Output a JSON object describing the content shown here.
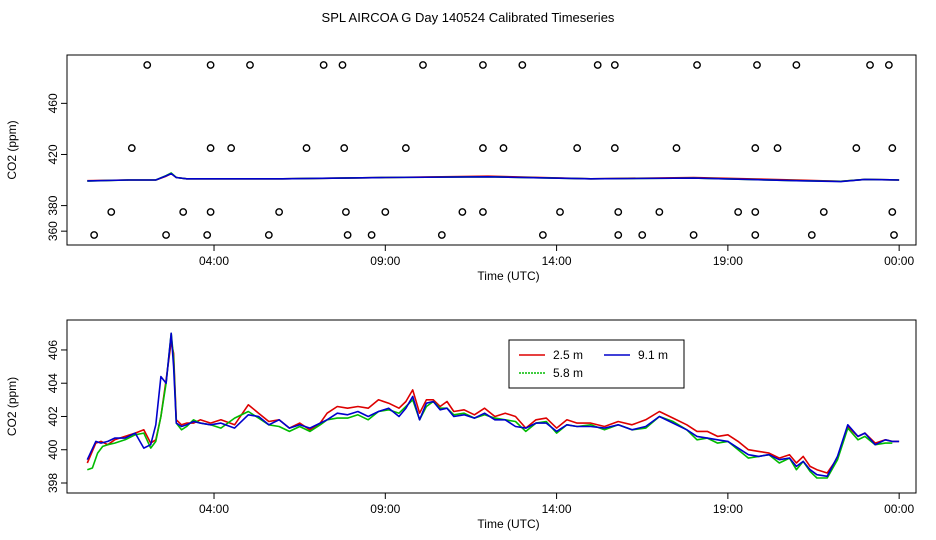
{
  "page_title": "SPL AIRCOA G  Day 140524  Calibrated Timeseries",
  "colors": {
    "series_a": "#dd0000",
    "series_b": "#00bb00",
    "series_c": "#0000cc",
    "frame": "#000000"
  },
  "chart_data": [
    {
      "type": "line",
      "title": "",
      "xlabel": "Time (UTC)",
      "ylabel": "CO2 (ppm)",
      "xlim": [
        0.0,
        24.2
      ],
      "ylim": [
        357,
        490
      ],
      "xticks": [
        4,
        9,
        14,
        19,
        24
      ],
      "xtick_labels": [
        "04:00",
        "09:00",
        "14:00",
        "19:00",
        "00:00"
      ],
      "yticks": [
        360,
        380,
        420,
        460
      ],
      "ytick_labels": [
        "360",
        "380",
        "420",
        "460"
      ],
      "series": [
        {
          "name": "2.5 m",
          "color": "#dd0000",
          "x": [
            0.3,
            1.5,
            2.3,
            2.6,
            2.75,
            2.9,
            3.2,
            6,
            9,
            12,
            15,
            18,
            21,
            22.3,
            23,
            24
          ],
          "y": [
            399.5,
            400,
            400,
            403,
            405,
            402,
            401,
            401,
            402,
            403,
            401,
            402,
            400,
            399,
            400.5,
            400
          ]
        },
        {
          "name": "5.8 m",
          "color": "#00bb00",
          "x": [
            0.3,
            1.5,
            2.3,
            2.6,
            2.75,
            2.9,
            3.2,
            6,
            9,
            12,
            15,
            18,
            21,
            22.3,
            23,
            24
          ],
          "y": [
            399.2,
            400,
            400,
            403.5,
            405.5,
            402,
            401,
            401,
            402,
            402.5,
            401,
            401.5,
            399.5,
            399,
            400.5,
            400
          ]
        },
        {
          "name": "9.1 m",
          "color": "#0000cc",
          "x": [
            0.3,
            1.5,
            2.3,
            2.6,
            2.75,
            2.9,
            3.2,
            6,
            9,
            12,
            15,
            18,
            21,
            22.3,
            23,
            24
          ],
          "y": [
            399.3,
            400,
            400,
            403.2,
            405,
            402,
            401,
            401,
            402,
            402.5,
            401,
            401.5,
            399.5,
            398.8,
            400.5,
            400
          ]
        }
      ],
      "flag_points": {
        "x": [
          2.05,
          3.9,
          5.05,
          7.2,
          7.75,
          10.1,
          11.85,
          13,
          15.2,
          15.7,
          18.1,
          19.85,
          21,
          23.15,
          23.7,
          1.6,
          3.9,
          4.5,
          6.7,
          7.8,
          9.6,
          11.85,
          12.45,
          14.6,
          15.7,
          17.5,
          19.8,
          20.45,
          22.75,
          23.8,
          1.0,
          3.1,
          3.9,
          5.9,
          7.85,
          9.0,
          11.25,
          11.85,
          14.1,
          15.8,
          17.0,
          19.3,
          19.8,
          21.8,
          23.8,
          0.5,
          2.6,
          3.8,
          5.6,
          7.9,
          8.6,
          10.65,
          13.6,
          15.8,
          16.5,
          18.0,
          19.8,
          21.45,
          23.85
        ],
        "y": [
          490,
          490,
          490,
          490,
          490,
          490,
          490,
          490,
          490,
          490,
          490,
          490,
          490,
          490,
          490,
          425,
          425,
          425,
          425,
          425,
          425,
          425,
          425,
          425,
          425,
          425,
          425,
          425,
          425,
          425,
          375,
          375,
          375,
          375,
          375,
          375,
          375,
          375,
          375,
          375,
          375,
          375,
          375,
          375,
          375,
          357,
          357,
          357,
          357,
          357,
          357,
          357,
          357,
          357,
          357,
          357,
          357,
          357,
          357
        ]
      }
    },
    {
      "type": "line",
      "title": "",
      "xlabel": "Time (UTC)",
      "ylabel": "CO2 (ppm)",
      "xlim": [
        0.0,
        24.2
      ],
      "ylim": [
        398,
        407.2
      ],
      "xticks": [
        4,
        9,
        14,
        19,
        24
      ],
      "xtick_labels": [
        "04:00",
        "09:00",
        "14:00",
        "19:00",
        "00:00"
      ],
      "yticks": [
        398,
        400,
        402,
        404,
        406
      ],
      "ytick_labels": [
        "398",
        "400",
        "402",
        "404",
        "406"
      ],
      "legend": {
        "placement": "top-center",
        "entries": [
          "2.5 m",
          "9.1 m",
          "5.8 m"
        ]
      },
      "series": [
        {
          "name": "2.5 m",
          "color": "#dd0000",
          "x": [
            0.3,
            0.55,
            0.7,
            0.9,
            1.1,
            1.4,
            1.7,
            1.95,
            2.15,
            2.3,
            2.45,
            2.6,
            2.75,
            2.82,
            2.9,
            3.05,
            3.2,
            3.4,
            3.6,
            3.9,
            4.2,
            4.6,
            5.0,
            5.3,
            5.6,
            5.9,
            6.2,
            6.5,
            6.8,
            7.1,
            7.3,
            7.6,
            7.9,
            8.2,
            8.5,
            8.8,
            9.1,
            9.4,
            9.6,
            9.8,
            10.0,
            10.2,
            10.4,
            10.6,
            10.8,
            11.0,
            11.3,
            11.6,
            11.9,
            12.2,
            12.5,
            12.8,
            13.1,
            13.4,
            13.7,
            14.0,
            14.3,
            14.6,
            15.0,
            15.4,
            15.8,
            16.2,
            16.6,
            17.0,
            17.4,
            17.8,
            18.1,
            18.4,
            18.7,
            19.0,
            19.3,
            19.6,
            19.9,
            20.2,
            20.5,
            20.8,
            21.0,
            21.2,
            21.4,
            21.6,
            21.9,
            22.2,
            22.5,
            22.8,
            23.0,
            23.3,
            23.6,
            23.8,
            24.0
          ],
          "y": [
            399.2,
            400.4,
            400.5,
            400.3,
            400.6,
            400.8,
            401.0,
            401.2,
            400.4,
            400.6,
            402.0,
            404.2,
            406.5,
            405.8,
            401.8,
            401.5,
            401.6,
            401.6,
            401.8,
            401.6,
            401.8,
            401.5,
            402.7,
            402.2,
            401.7,
            401.8,
            401.3,
            401.6,
            401.2,
            401.6,
            402.2,
            402.6,
            402.5,
            402.6,
            402.5,
            403.0,
            402.8,
            402.5,
            402.9,
            403.6,
            402.2,
            403.0,
            403.0,
            402.6,
            402.9,
            402.3,
            402.4,
            402.1,
            402.5,
            402.0,
            402.2,
            402.0,
            401.3,
            401.8,
            401.9,
            401.3,
            401.8,
            401.6,
            401.6,
            401.4,
            401.7,
            401.5,
            401.8,
            402.3,
            401.9,
            401.5,
            401.1,
            401.1,
            400.8,
            400.9,
            400.5,
            400.0,
            399.9,
            399.8,
            399.5,
            399.7,
            399.2,
            399.6,
            399.0,
            398.8,
            398.6,
            399.5,
            401.4,
            400.8,
            401.0,
            400.4,
            400.6,
            400.5,
            400.5
          ]
        },
        {
          "name": "5.8 m",
          "color": "#00bb00",
          "x": [
            0.3,
            0.45,
            0.6,
            0.75,
            0.9,
            1.1,
            1.4,
            1.7,
            1.95,
            2.15,
            2.3,
            2.45,
            2.6,
            2.75,
            2.82,
            2.9,
            3.05,
            3.2,
            3.4,
            3.6,
            3.9,
            4.2,
            4.6,
            5.0,
            5.3,
            5.6,
            5.9,
            6.2,
            6.5,
            6.8,
            7.1,
            7.3,
            7.6,
            7.9,
            8.2,
            8.5,
            8.8,
            9.1,
            9.4,
            9.6,
            9.8,
            10.0,
            10.2,
            10.4,
            10.6,
            10.8,
            11.0,
            11.3,
            11.6,
            11.9,
            12.2,
            12.5,
            12.8,
            13.1,
            13.4,
            13.7,
            14.0,
            14.3,
            14.6,
            15.0,
            15.4,
            15.8,
            16.2,
            16.6,
            17.0,
            17.4,
            17.8,
            18.1,
            18.4,
            18.7,
            19.0,
            19.3,
            19.6,
            19.9,
            20.2,
            20.5,
            20.8,
            21.0,
            21.2,
            21.4,
            21.6,
            21.9,
            22.2,
            22.5,
            22.8,
            23.0,
            23.3,
            23.6,
            23.8
          ],
          "y": [
            398.8,
            398.9,
            399.8,
            400.2,
            400.3,
            400.4,
            400.6,
            400.9,
            401.0,
            400.1,
            400.5,
            402.0,
            404.0,
            407.0,
            405.5,
            401.6,
            401.2,
            401.4,
            401.8,
            401.6,
            401.5,
            401.3,
            401.9,
            402.3,
            401.9,
            401.5,
            401.4,
            401.1,
            401.4,
            401.1,
            401.5,
            401.8,
            401.9,
            401.9,
            402.1,
            401.8,
            402.3,
            402.4,
            402.2,
            402.6,
            403.0,
            401.8,
            402.6,
            402.9,
            402.5,
            402.5,
            402.1,
            402.2,
            401.9,
            402.1,
            401.9,
            401.8,
            401.7,
            401.1,
            401.6,
            401.7,
            401.0,
            401.5,
            401.4,
            401.5,
            401.2,
            401.5,
            401.2,
            401.3,
            402.0,
            401.7,
            401.2,
            400.6,
            400.7,
            400.4,
            400.5,
            400.0,
            399.5,
            399.6,
            399.7,
            399.2,
            399.5,
            398.8,
            399.3,
            398.7,
            398.3,
            398.3,
            399.4,
            401.3,
            400.6,
            400.8,
            400.3,
            400.4,
            400.4
          ]
        },
        {
          "name": "9.1 m",
          "color": "#0000cc",
          "x": [
            0.3,
            0.55,
            0.7,
            0.9,
            1.1,
            1.4,
            1.7,
            1.95,
            2.15,
            2.3,
            2.45,
            2.6,
            2.75,
            2.82,
            2.9,
            3.05,
            3.2,
            3.4,
            3.6,
            3.9,
            4.2,
            4.6,
            5.0,
            5.3,
            5.6,
            5.9,
            6.2,
            6.5,
            6.8,
            7.1,
            7.3,
            7.6,
            7.9,
            8.2,
            8.5,
            8.8,
            9.1,
            9.4,
            9.6,
            9.8,
            10.0,
            10.2,
            10.4,
            10.6,
            10.8,
            11.0,
            11.3,
            11.6,
            11.9,
            12.2,
            12.5,
            12.8,
            13.1,
            13.4,
            13.7,
            14.0,
            14.3,
            14.6,
            15.0,
            15.4,
            15.8,
            16.2,
            16.6,
            17.0,
            17.4,
            17.8,
            18.1,
            18.4,
            18.7,
            19.0,
            19.3,
            19.6,
            19.9,
            20.2,
            20.5,
            20.8,
            21.0,
            21.2,
            21.4,
            21.6,
            21.9,
            22.2,
            22.5,
            22.8,
            23.0,
            23.3,
            23.6,
            23.8,
            24.0
          ],
          "y": [
            399.4,
            400.5,
            400.4,
            400.5,
            400.7,
            400.7,
            401.0,
            400.1,
            400.3,
            401.5,
            404.4,
            404.0,
            407.0,
            405.0,
            401.6,
            401.4,
            401.5,
            401.7,
            401.6,
            401.5,
            401.6,
            401.3,
            402.1,
            402.0,
            401.5,
            401.8,
            401.3,
            401.5,
            401.3,
            401.6,
            401.8,
            402.2,
            402.1,
            402.3,
            402.0,
            402.3,
            402.5,
            402.0,
            402.5,
            403.2,
            401.8,
            402.8,
            402.9,
            402.4,
            402.5,
            402.0,
            402.1,
            401.9,
            402.2,
            401.8,
            401.8,
            401.4,
            401.3,
            401.6,
            401.6,
            401.1,
            401.5,
            401.4,
            401.4,
            401.3,
            401.5,
            401.2,
            401.4,
            402.0,
            401.6,
            401.2,
            400.8,
            400.7,
            400.6,
            400.5,
            400.1,
            399.7,
            399.6,
            399.7,
            399.4,
            399.5,
            399.0,
            399.3,
            398.8,
            398.5,
            398.4,
            399.6,
            401.5,
            400.8,
            401.0,
            400.3,
            400.6,
            400.5,
            400.5
          ]
        }
      ]
    }
  ]
}
